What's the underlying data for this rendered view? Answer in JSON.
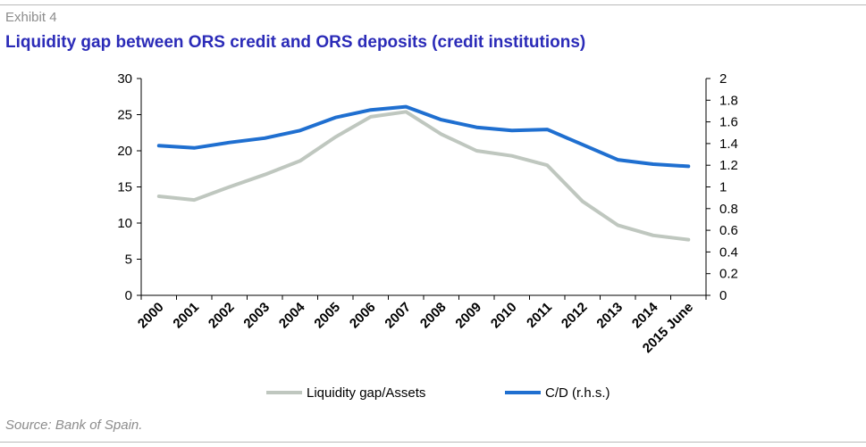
{
  "header": {
    "exhibit": "Exhibit 4",
    "title": "Liquidity gap between ORS credit and ORS deposits (credit institutions)"
  },
  "footer": {
    "source": "Source: Bank of Spain."
  },
  "colors": {
    "gap_series": "#bfc7bf",
    "cd_series": "#1f6fd0",
    "title": "#2b2bb8",
    "muted_text": "#8c8c8c"
  },
  "chart_data": {
    "type": "line",
    "title": "Liquidity gap between ORS credit and ORS deposits (credit institutions)",
    "categories": [
      "2000",
      "2001",
      "2002",
      "2003",
      "2004",
      "2005",
      "2006",
      "2007",
      "2008",
      "2009",
      "2010",
      "2011",
      "2012",
      "2013",
      "2014",
      "2015 June"
    ],
    "y_left": {
      "ylim": [
        0,
        30
      ],
      "ticks": [
        "0",
        "5",
        "10",
        "15",
        "20",
        "25",
        "30"
      ],
      "tick_values": [
        0,
        5,
        10,
        15,
        20,
        25,
        30
      ]
    },
    "y_right": {
      "ylim": [
        0,
        2
      ],
      "ticks": [
        "0",
        "0.2",
        "0.4",
        "0.6",
        "0.8",
        "1",
        "1.2",
        "1.4",
        "1.6",
        "1.8",
        "2"
      ],
      "tick_values": [
        0,
        0.2,
        0.4,
        0.6,
        0.8,
        1,
        1.2,
        1.4,
        1.6,
        1.8,
        2
      ]
    },
    "grid": false,
    "legend_position": "bottom",
    "series": [
      {
        "name": "Liquidity gap/Assets",
        "axis": "left",
        "values": [
          13.7,
          13.2,
          15.0,
          16.7,
          18.6,
          21.9,
          24.7,
          25.4,
          22.3,
          20.0,
          19.3,
          18.0,
          13.0,
          9.7,
          8.3,
          7.7
        ]
      },
      {
        "name": "C/D (r.h.s.)",
        "axis": "right",
        "values": [
          1.38,
          1.36,
          1.41,
          1.45,
          1.52,
          1.64,
          1.71,
          1.74,
          1.62,
          1.55,
          1.52,
          1.53,
          1.39,
          1.25,
          1.21,
          1.19
        ]
      }
    ]
  }
}
